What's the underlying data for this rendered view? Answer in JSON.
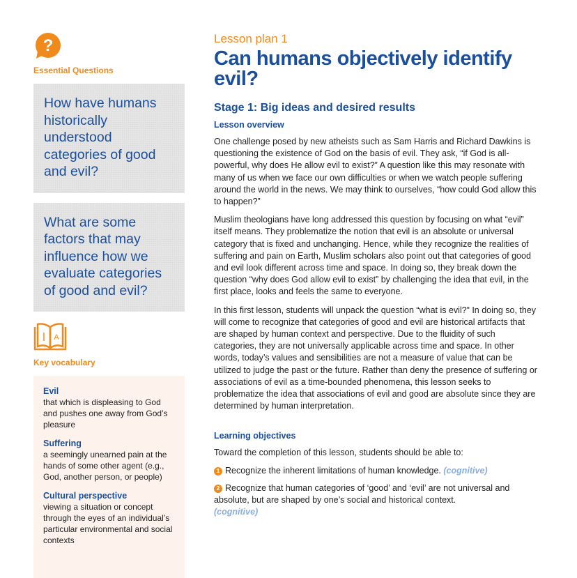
{
  "sidebar": {
    "icon": "question-bubble-icon",
    "essential_label": "Essential Questions",
    "questions": [
      "How have humans historically understood categories of good and evil?",
      "What are some factors that may influence how we evaluate categories of good and evil?"
    ],
    "vocab_icon": "open-book-icon",
    "vocab_label": "Key vocabulary",
    "vocab": [
      {
        "term": "Evil",
        "def": "that which is displeasing to God and pushes one away from God’s pleasure"
      },
      {
        "term": "Suffering",
        "def": "a seemingly unearned pain at the hands of some other agent (e.g., God, another person, or people)"
      },
      {
        "term": "Cultural perspective",
        "def": "viewing a situation or concept through the eyes of an individ­ual’s particular environmental and social contexts"
      }
    ]
  },
  "main": {
    "lesson_label": "Lesson plan 1",
    "title": "Can humans objectively identify evil?",
    "stage": "Stage 1: Big ideas and desired results",
    "overview_heading": "Lesson overview",
    "paragraphs": [
      "One challenge posed by new atheists such as Sam Harris and Richard Dawkins is questioning the existence of God on the basis of evil. They ask, “if God is all-powerful, why does He allow evil to exist?” A question like this may resonate with many of us when we face our own difficulties or when we watch people suffering around the world in the news. We may think to ourselves, “how could God allow this to happen?”",
      "Muslim theologians have long addressed this question by focusing on what “evil” itself means. They problematize the notion that evil is an absolute or universal category that is fixed and unchanging. Hence, while they recognize the realities of suffering and pain on Earth, Muslim scholars also point out that categories of good and evil look different across time and space. In doing so, they break down the question “why does God allow evil to exist” by challenging the idea that evil, in the first place, looks and feels the same to everyone.",
      "In this first lesson, students will unpack the question “what is evil?” In doing so, they will come to recognize that categories of good and evil are historical artifacts that are shaped by human context and perspective. Due to the fluidity of such categories, they are not universally applicable across time and space. In other words, today’s values and sensibilities are not a measure of value that can be utilized to judge the past or the future. Rather than deny the presence of suffering or associations of evil as a time-bounded phenomena, this lesson seeks to problematize the idea that associations of evil and good are absolute since they are determined by human interpretation."
    ],
    "objectives_heading": "Learning objectives",
    "objectives_intro": "Toward the completion of this lesson, students should be able to:",
    "objectives": [
      {
        "num": "1",
        "text": "Recognize the inherent limitations of human knowledge.",
        "tag": "(cognitive)"
      },
      {
        "num": "2",
        "text": "Recognize that human categories of ‘good’ and ‘evil’ are not universal and absolute, but are shaped by one’s social and historical context.",
        "tag": "(cognitive)"
      }
    ]
  },
  "colors": {
    "accent": "#f08a1c",
    "heading": "#1b4f9c",
    "tag": "#8aaee0",
    "vocab_bg": "#fdf3ec",
    "question_bg": "#e4e4e4"
  }
}
